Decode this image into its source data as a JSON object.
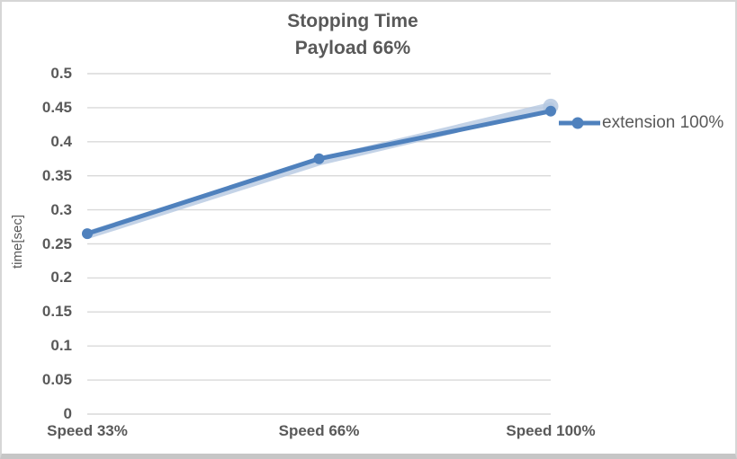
{
  "chart_data": {
    "type": "line",
    "title": "Stopping Time",
    "subtitle": "Payload 66%",
    "categories": [
      "Speed 33%",
      "Speed 66%",
      "Speed 100%"
    ],
    "series": [
      {
        "name": "extension 100%",
        "values": [
          0.265,
          0.375,
          0.445
        ],
        "color": "#4f81bd"
      }
    ],
    "shadow_series": {
      "values": [
        0.263,
        0.371,
        0.452
      ],
      "color": "#b5c8e1"
    },
    "xlabel": "",
    "ylabel": "time[sec]",
    "ylim": [
      0,
      0.5
    ],
    "ytick_step": 0.05,
    "yticks": [
      "0.5",
      "0.45",
      "0.4",
      "0.35",
      "0.3",
      "0.25",
      "0.2",
      "0.15",
      "0.1",
      "0.05",
      "0"
    ],
    "grid": true,
    "legend_position": "right",
    "colors": {
      "grid": "#d9d9d9",
      "text": "#595959",
      "background": "#ffffff"
    }
  }
}
